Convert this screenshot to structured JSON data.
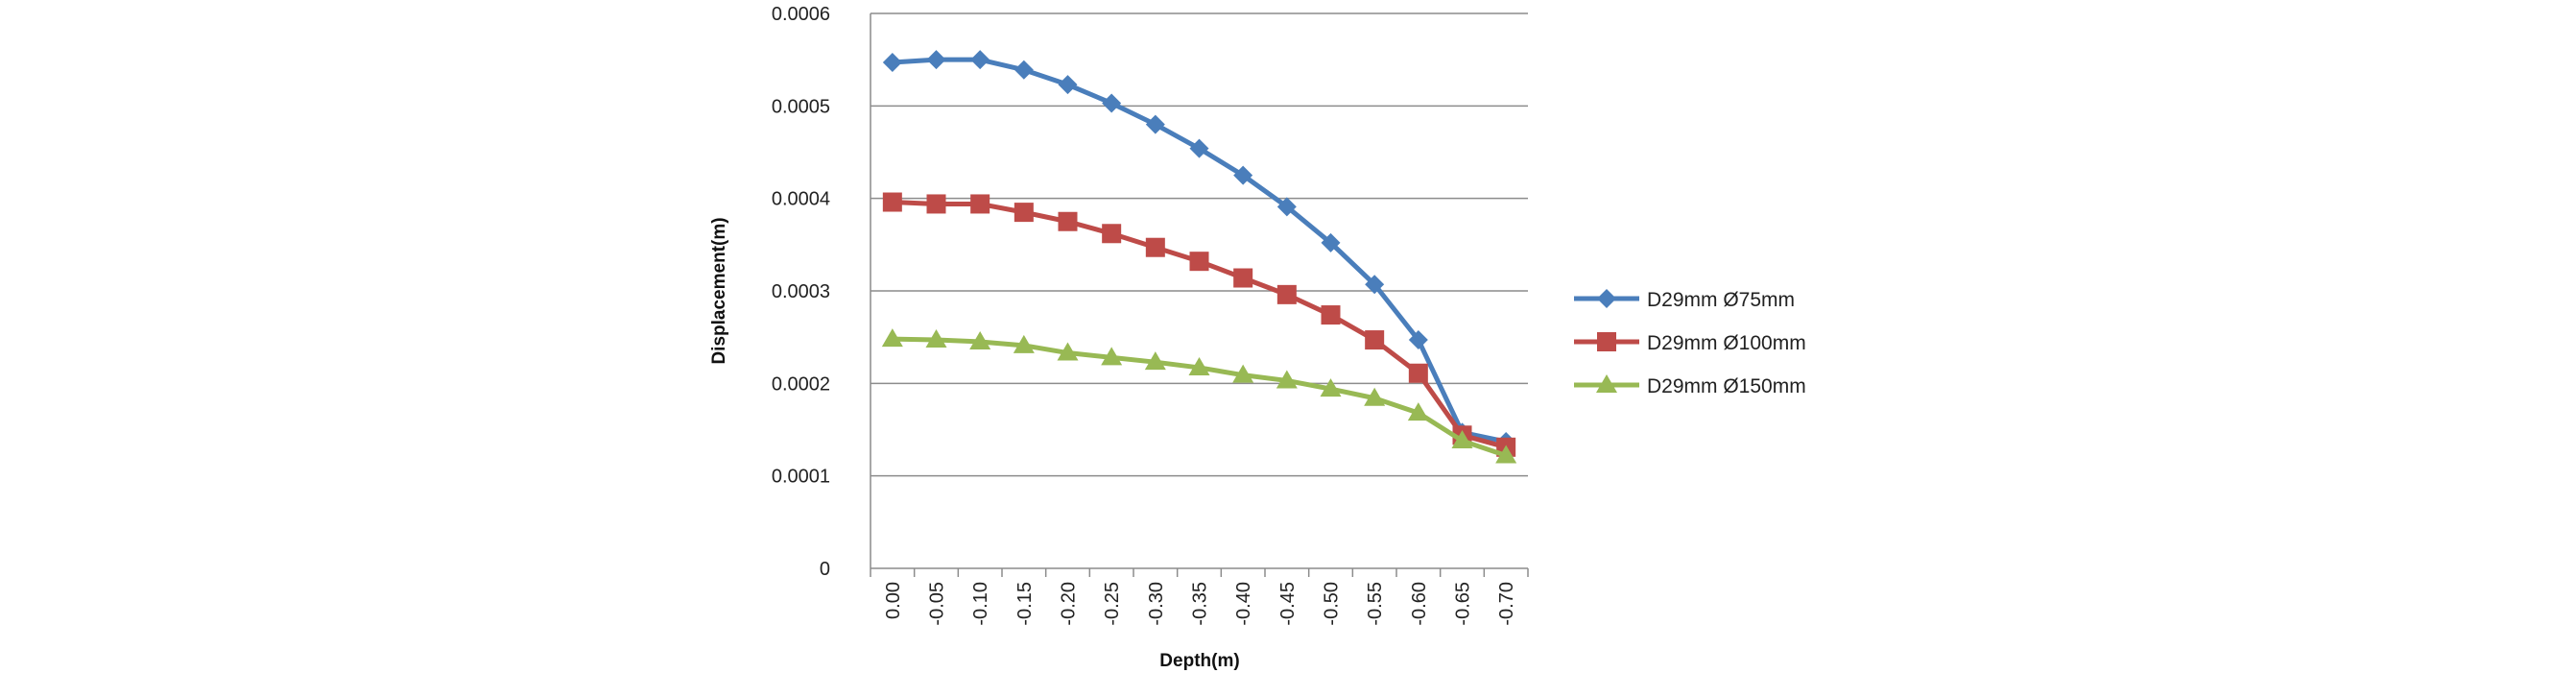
{
  "chart_data": {
    "type": "line",
    "title": "",
    "xlabel": "Depth(m)",
    "ylabel": "Displacement(m)",
    "categories": [
      "0.00",
      "-0.05",
      "-0.10",
      "-0.15",
      "-0.20",
      "-0.25",
      "-0.30",
      "-0.35",
      "-0.40",
      "-0.45",
      "-0.50",
      "-0.55",
      "-0.60",
      "-0.65",
      "-0.70"
    ],
    "ylim": [
      0,
      0.0006
    ],
    "yticks": [
      "0",
      "0.0001",
      "0.0002",
      "0.0003",
      "0.0004",
      "0.0005",
      "0.0006"
    ],
    "grid": "horizontal",
    "legend_position": "right",
    "series": [
      {
        "name": "D29mm Ø75mm",
        "color": "#4a7ebb",
        "marker": "diamond",
        "values": [
          0.000547,
          0.00055,
          0.00055,
          0.000539,
          0.000523,
          0.000503,
          0.00048,
          0.000454,
          0.000425,
          0.000391,
          0.000352,
          0.000307,
          0.000247,
          0.000147,
          0.000137
        ]
      },
      {
        "name": "D29mm Ø100mm",
        "color": "#be4b48",
        "marker": "square",
        "values": [
          0.000396,
          0.000394,
          0.000394,
          0.000385,
          0.000375,
          0.000362,
          0.000347,
          0.000332,
          0.000314,
          0.000296,
          0.000274,
          0.000247,
          0.000211,
          0.000144,
          0.000131
        ]
      },
      {
        "name": "D29mm Ø150mm",
        "color": "#98b954",
        "marker": "triangle",
        "values": [
          0.000248,
          0.000247,
          0.000245,
          0.000241,
          0.000233,
          0.000228,
          0.000223,
          0.000217,
          0.000209,
          0.000203,
          0.000194,
          0.000184,
          0.000168,
          0.000138,
          0.000122
        ]
      }
    ]
  }
}
